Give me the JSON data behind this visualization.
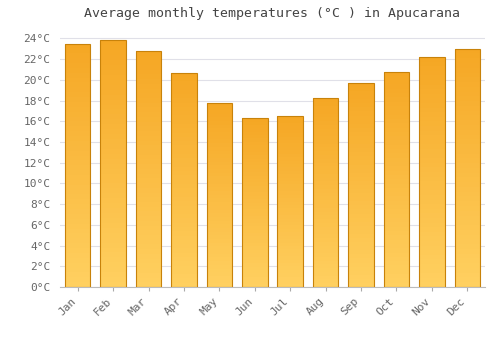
{
  "title": "Average monthly temperatures (°C ) in Apucarana",
  "months": [
    "Jan",
    "Feb",
    "Mar",
    "Apr",
    "May",
    "Jun",
    "Jul",
    "Aug",
    "Sep",
    "Oct",
    "Nov",
    "Dec"
  ],
  "values": [
    23.5,
    23.8,
    22.8,
    20.7,
    17.8,
    16.3,
    16.5,
    18.2,
    19.7,
    20.8,
    22.2,
    23.0
  ],
  "bar_color_top": "#F5A623",
  "bar_color_bottom": "#FFD060",
  "bar_edge_color": "#C8820A",
  "background_color": "#FFFFFF",
  "plot_bg_color": "#FFFFFF",
  "grid_color": "#E0E0E8",
  "ylim": [
    0,
    25
  ],
  "yticks": [
    0,
    2,
    4,
    6,
    8,
    10,
    12,
    14,
    16,
    18,
    20,
    22,
    24
  ],
  "title_fontsize": 9.5,
  "tick_fontsize": 8,
  "title_color": "#444444",
  "tick_color": "#666666",
  "font_family": "monospace"
}
